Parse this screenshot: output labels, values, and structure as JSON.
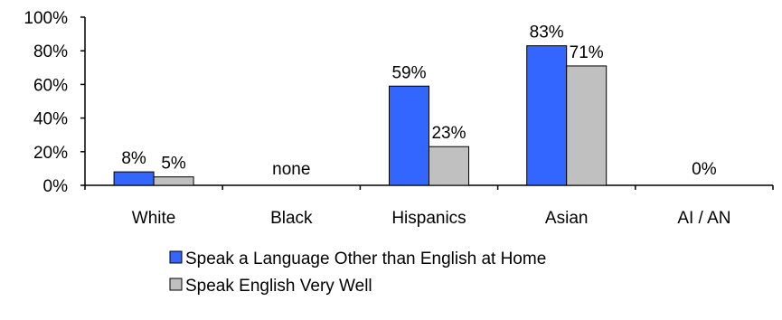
{
  "chart_data": {
    "type": "bar",
    "title": "",
    "xlabel": "",
    "ylabel": "",
    "ylim": [
      0,
      100
    ],
    "yticks": [
      0,
      20,
      40,
      60,
      80,
      100
    ],
    "ytick_labels": [
      "0%",
      "20%",
      "40%",
      "60%",
      "80%",
      "100%"
    ],
    "categories": [
      "White",
      "Black",
      "Hispanics",
      "Asian",
      "AI / AN"
    ],
    "series": [
      {
        "name": "Speak a Language Other than English at Home",
        "color": "#3366ff",
        "values": [
          8,
          null,
          59,
          83,
          0
        ],
        "labels": [
          "8%",
          null,
          "59%",
          "83%",
          null
        ]
      },
      {
        "name": "Speak English Very Well",
        "color": "#c0c0c0",
        "values": [
          5,
          null,
          23,
          71,
          0
        ],
        "labels": [
          "5%",
          null,
          "23%",
          "71%",
          null
        ]
      }
    ],
    "category_notes": [
      "",
      "none",
      "",
      "",
      "0%"
    ],
    "grid": false,
    "legend": "bottom"
  }
}
